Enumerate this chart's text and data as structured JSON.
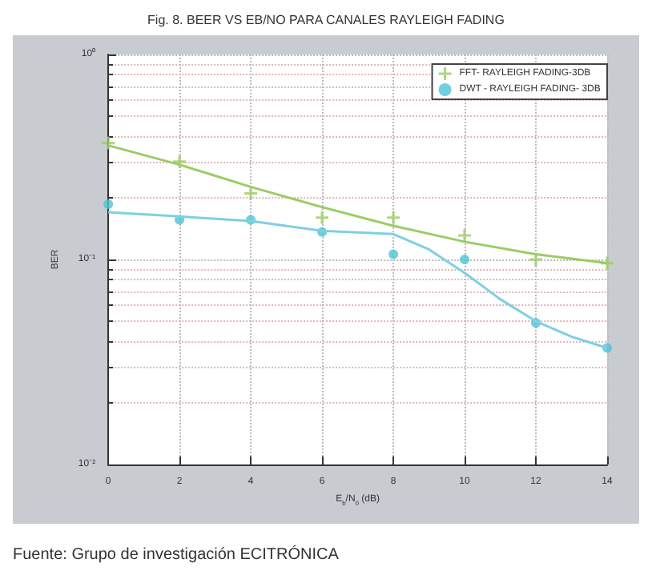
{
  "chart_data": {
    "type": "scatter",
    "title": "Fig. 8. BEER VS EB/NO PARA CANALES RAYLEIGH FADING",
    "xlabel": "E$_{b}$/N$_{0}$ (dB)",
    "ylabel": "BER",
    "annotations": [
      "Fuente: Grupo de investigación ECITRÓNICA"
    ],
    "log": "y",
    "grid": true,
    "legend": "top right",
    "xlim": [
      0,
      14
    ],
    "xticks": [
      0,
      2,
      4,
      6,
      8,
      10,
      12,
      14
    ],
    "ylim": [
      0.01,
      1
    ],
    "yticks": [
      {
        "value": 0.01,
        "label": "10⁻²"
      },
      {
        "value": 0.1,
        "label": "10⁻¹"
      },
      {
        "value": 1,
        "label": "10⁰"
      }
    ],
    "series": [
      {
        "name": "FFT- RAYLEIGH FADING-3DB",
        "marker": "cross",
        "color": "#9ccc65",
        "x": [
          0,
          2,
          4,
          6,
          8,
          10,
          12,
          14
        ],
        "values": [
          0.37,
          0.3,
          0.21,
          0.16,
          0.16,
          0.131,
          0.1,
          0.096
        ]
      },
      {
        "name": "DWT - RAYLEIGH FADING- 3DB",
        "marker": "circle",
        "color": "#4fc3d4",
        "x": [
          0,
          2,
          4,
          6,
          8,
          10,
          12,
          14
        ],
        "values": [
          0.186,
          0.156,
          0.156,
          0.136,
          0.106,
          0.1,
          0.049,
          0.037
        ]
      },
      {
        "type": "line",
        "marker": "none",
        "color": "#9ccc65",
        "x": [
          0,
          2,
          4,
          6,
          8,
          10,
          12,
          14
        ],
        "values": [
          0.36,
          0.29,
          0.226,
          0.18,
          0.146,
          0.122,
          0.106,
          0.096
        ]
      },
      {
        "type": "line",
        "marker": "none",
        "color": "#7fd0e0",
        "x": [
          0,
          2,
          4,
          6,
          8,
          9,
          10,
          11,
          12,
          13,
          14
        ],
        "values": [
          0.17,
          0.162,
          0.154,
          0.138,
          0.133,
          0.112,
          0.086,
          0.064,
          0.05,
          0.042,
          0.037
        ]
      }
    ]
  }
}
